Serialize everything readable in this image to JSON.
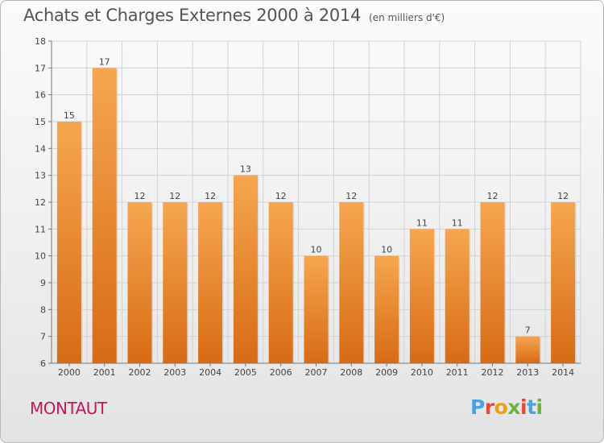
{
  "header": {
    "title": "Achats et Charges Externes 2000 à 2014",
    "unit": "(en milliers d'€)"
  },
  "footer": {
    "commune": "MONTAUT",
    "brand": "Proxiti"
  },
  "colors": {
    "bar_top": "#f6a650",
    "bar_bottom": "#d86b15",
    "title": "#555555",
    "commune": "#c2185b",
    "logo_letters": [
      "#4aa3df",
      "#e8473b",
      "#f39c12",
      "#6cb33f",
      "#e8473b",
      "#4aa3df",
      "#6cb33f"
    ]
  },
  "chart_data": {
    "type": "bar",
    "title": "Achats et Charges Externes 2000 à 2014",
    "subtitle": "(en milliers d'€)",
    "categories": [
      "2000",
      "2001",
      "2002",
      "2003",
      "2004",
      "2005",
      "2006",
      "2007",
      "2008",
      "2009",
      "2010",
      "2011",
      "2012",
      "2013",
      "2014"
    ],
    "values": [
      15,
      17,
      12,
      12,
      12,
      13,
      12,
      10,
      12,
      10,
      11,
      11,
      12,
      7,
      12
    ],
    "data_labels": [
      "15",
      "17",
      "12",
      "12",
      "12",
      "13",
      "12",
      "10",
      "12",
      "10",
      "11",
      "11",
      "12",
      "7",
      "12"
    ],
    "ylim": [
      6,
      18
    ],
    "yticks": [
      6,
      7,
      8,
      9,
      10,
      11,
      12,
      13,
      14,
      15,
      16,
      17,
      18
    ],
    "grid": true,
    "xlabel": "",
    "ylabel": ""
  }
}
